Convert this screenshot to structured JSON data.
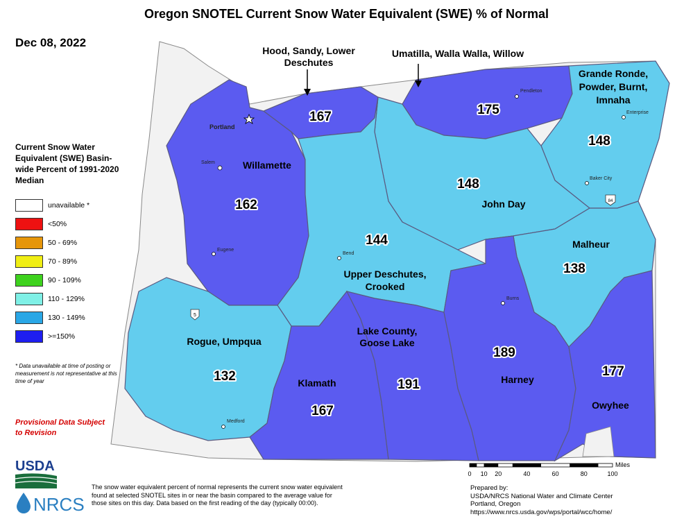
{
  "title": "Oregon SNOTEL Current Snow Water Equivalent (SWE) % of Normal",
  "date": "Dec 08, 2022",
  "legend": {
    "title": "Current Snow Water Equivalent (SWE) Basin-wide Percent of 1991-2020 Median",
    "items": [
      {
        "label": "unavailable *",
        "color": "#ffffff"
      },
      {
        "label": "<50%",
        "color": "#ee1111"
      },
      {
        "label": "50 - 69%",
        "color": "#e6960a"
      },
      {
        "label": "70 - 89%",
        "color": "#f0ee14"
      },
      {
        "label": "90 - 109%",
        "color": "#3ed21e"
      },
      {
        "label": "110 - 129%",
        "color": "#7ff0e6"
      },
      {
        "label": "130 - 149%",
        "color": "#2aa7e6"
      },
      {
        "label": ">=150%",
        "color": "#1e1ef0"
      }
    ],
    "footnote": "* Data unavailable at time of posting or measurement is not representative at this time of year"
  },
  "provisional": "Provisional Data Subject to Revision",
  "colors": {
    "above150_fill": "#5b5bf0",
    "range130_149_fill": "#63cdee",
    "unavailable_fill": "#f2f2f2",
    "basin_border": "#5a5a80"
  },
  "callouts": {
    "hood": "Hood, Sandy, Lower Deschutes",
    "umatilla": "Umatilla, Walla Walla, Willow"
  },
  "basins": [
    {
      "name": "Willamette",
      "value": "162"
    },
    {
      "name": "Hood, Sandy, Lower Deschutes",
      "value": "167"
    },
    {
      "name": "Umatilla, Walla Walla, Willow",
      "value": "175"
    },
    {
      "name": "Grande Ronde, Powder, Burnt, Imnaha",
      "value": "148"
    },
    {
      "name": "John Day",
      "value": "148"
    },
    {
      "name": "Upper Deschutes, Crooked",
      "value": "144"
    },
    {
      "name": "Malheur",
      "value": "138"
    },
    {
      "name": "Rogue, Umpqua",
      "value": "132"
    },
    {
      "name": "Klamath",
      "value": "167"
    },
    {
      "name": "Lake County, Goose Lake",
      "value": "191"
    },
    {
      "name": "Harney",
      "value": "189"
    },
    {
      "name": "Owyhee",
      "value": "177"
    }
  ],
  "map_labels": {
    "willamette": "Willamette",
    "john_day": "John Day",
    "upper_deschutes_1": "Upper Deschutes,",
    "upper_deschutes_2": "Crooked",
    "malheur": "Malheur",
    "rogue": "Rogue, Umpqua",
    "klamath": "Klamath",
    "lake_1": "Lake County,",
    "lake_2": "Goose Lake",
    "harney": "Harney",
    "owyhee": "Owyhee",
    "grande_1": "Grande Ronde,",
    "grande_2": "Powder, Burnt,",
    "grande_3": "Imnaha"
  },
  "cities": {
    "portland": "Portland",
    "salem": "Salem",
    "eugene": "Eugene",
    "bend": "Bend",
    "medford": "Medford",
    "pendleton": "Pendleton",
    "enterprise": "Enterprise",
    "baker_city": "Baker City",
    "burns": "Burns"
  },
  "highways": {
    "i5": "5",
    "i84": "84"
  },
  "scale": {
    "unit": "Miles",
    "ticks": [
      "0",
      "10",
      "20",
      "40",
      "60",
      "80",
      "100"
    ]
  },
  "description": "The snow water equivalent percent of normal represents the current snow water equivalent found at selected SNOTEL sites in or near the basin compared to the average value for those sites on this day. Data based on the first reading of the day (typically 00:00).",
  "prepared_by": {
    "heading": "Prepared by:",
    "org": "USDA/NRCS National Water and Climate Center",
    "city": "Portland, Oregon",
    "url": "https://www.nrcs.usda.gov/wps/portal/wcc/home/"
  },
  "logos": {
    "usda": "USDA",
    "nrcs": "NRCS"
  }
}
